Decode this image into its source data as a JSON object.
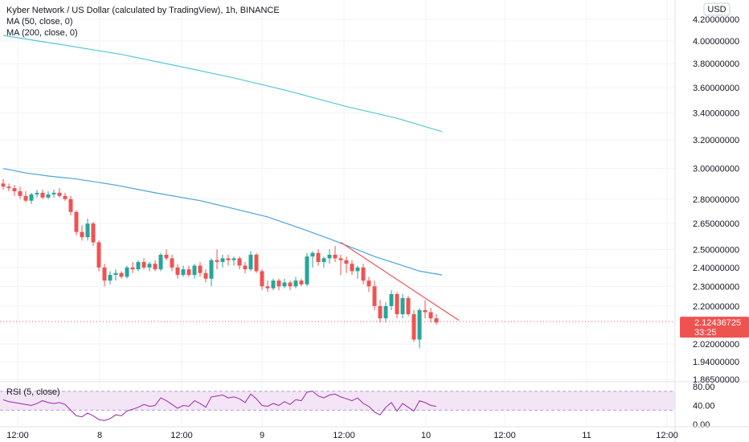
{
  "header": {
    "title": "Kyber Network / US Dollar (calculated by TradingView), 1h, BINANCE",
    "indicators": [
      "MA (50, close, 0)",
      "MA (200, close, 0)"
    ]
  },
  "currency_button": "USD",
  "price_badge": {
    "price": "2.12436725",
    "countdown": "33:25",
    "color": "#ef5350"
  },
  "rsi_label": "RSI (5, close)",
  "colors": {
    "up": "#26a69a",
    "down": "#ef5350",
    "ma50": "#4aa3df",
    "ma200": "#56c8d8",
    "rsi": "#9c27b0",
    "rsi_band": "#f3e5f5",
    "trendline": "#ef5350"
  },
  "chart_data": [
    {
      "type": "candlestick",
      "title": "Kyber Network / US Dollar (calculated by TradingView), 1h, BINANCE",
      "x_ticks": [
        "12:00",
        "8",
        "12:00",
        "9",
        "12:00",
        "10",
        "12:00",
        "11",
        "12:00"
      ],
      "y_ticks": [
        "4.20000000",
        "4.00000000",
        "3.80000000",
        "3.60000000",
        "3.40000000",
        "3.20000000",
        "3.00000000",
        "2.80000000",
        "2.65000000",
        "2.50000000",
        "2.40000000",
        "2.30000000",
        "2.20000000",
        "2.02000000",
        "1.94000000",
        "1.86500000"
      ],
      "y_scale": "log",
      "ylim": [
        1.86,
        4.28
      ],
      "last_price": 2.12436725,
      "candles": [
        [
          2.9,
          2.93,
          2.86,
          2.88
        ],
        [
          2.88,
          2.9,
          2.85,
          2.87
        ],
        [
          2.87,
          2.89,
          2.82,
          2.85
        ],
        [
          2.85,
          2.88,
          2.8,
          2.82
        ],
        [
          2.82,
          2.85,
          2.78,
          2.79
        ],
        [
          2.79,
          2.84,
          2.77,
          2.83
        ],
        [
          2.83,
          2.86,
          2.81,
          2.84
        ],
        [
          2.84,
          2.86,
          2.8,
          2.81
        ],
        [
          2.81,
          2.85,
          2.8,
          2.83
        ],
        [
          2.83,
          2.86,
          2.81,
          2.84
        ],
        [
          2.84,
          2.87,
          2.81,
          2.82
        ],
        [
          2.82,
          2.84,
          2.79,
          2.8
        ],
        [
          2.8,
          2.82,
          2.7,
          2.72
        ],
        [
          2.72,
          2.73,
          2.58,
          2.6
        ],
        [
          2.6,
          2.64,
          2.55,
          2.57
        ],
        [
          2.57,
          2.68,
          2.55,
          2.65
        ],
        [
          2.65,
          2.66,
          2.52,
          2.54
        ],
        [
          2.54,
          2.55,
          2.38,
          2.4
        ],
        [
          2.4,
          2.42,
          2.3,
          2.33
        ],
        [
          2.33,
          2.38,
          2.31,
          2.36
        ],
        [
          2.36,
          2.39,
          2.33,
          2.37
        ],
        [
          2.37,
          2.38,
          2.34,
          2.35
        ],
        [
          2.35,
          2.41,
          2.34,
          2.4
        ],
        [
          2.4,
          2.43,
          2.37,
          2.39
        ],
        [
          2.39,
          2.44,
          2.38,
          2.43
        ],
        [
          2.43,
          2.45,
          2.39,
          2.4
        ],
        [
          2.4,
          2.43,
          2.38,
          2.42
        ],
        [
          2.42,
          2.44,
          2.38,
          2.39
        ],
        [
          2.39,
          2.48,
          2.38,
          2.47
        ],
        [
          2.47,
          2.5,
          2.44,
          2.45
        ],
        [
          2.45,
          2.47,
          2.38,
          2.4
        ],
        [
          2.4,
          2.42,
          2.34,
          2.36
        ],
        [
          2.36,
          2.41,
          2.35,
          2.39
        ],
        [
          2.39,
          2.41,
          2.35,
          2.36
        ],
        [
          2.36,
          2.42,
          2.34,
          2.41
        ],
        [
          2.41,
          2.43,
          2.35,
          2.37
        ],
        [
          2.37,
          2.39,
          2.32,
          2.34
        ],
        [
          2.34,
          2.45,
          2.3,
          2.44
        ],
        [
          2.44,
          2.5,
          2.39,
          2.43
        ],
        [
          2.43,
          2.47,
          2.4,
          2.45
        ],
        [
          2.45,
          2.47,
          2.41,
          2.44
        ],
        [
          2.44,
          2.46,
          2.41,
          2.45
        ],
        [
          2.45,
          2.46,
          2.39,
          2.41
        ],
        [
          2.41,
          2.43,
          2.37,
          2.39
        ],
        [
          2.39,
          2.49,
          2.38,
          2.47
        ],
        [
          2.47,
          2.48,
          2.37,
          2.38
        ],
        [
          2.38,
          2.39,
          2.28,
          2.3
        ],
        [
          2.3,
          2.33,
          2.27,
          2.29
        ],
        [
          2.29,
          2.34,
          2.28,
          2.33
        ],
        [
          2.33,
          2.34,
          2.28,
          2.3
        ],
        [
          2.3,
          2.34,
          2.29,
          2.32
        ],
        [
          2.32,
          2.33,
          2.28,
          2.3
        ],
        [
          2.3,
          2.35,
          2.29,
          2.33
        ],
        [
          2.33,
          2.34,
          2.3,
          2.31
        ],
        [
          2.31,
          2.48,
          2.3,
          2.46
        ],
        [
          2.46,
          2.49,
          2.4,
          2.48
        ],
        [
          2.48,
          2.5,
          2.41,
          2.43
        ],
        [
          2.43,
          2.46,
          2.4,
          2.45
        ],
        [
          2.45,
          2.5,
          2.42,
          2.47
        ],
        [
          2.47,
          2.52,
          2.43,
          2.45
        ],
        [
          2.45,
          2.47,
          2.36,
          2.44
        ],
        [
          2.44,
          2.46,
          2.37,
          2.42
        ],
        [
          2.42,
          2.44,
          2.36,
          2.38
        ],
        [
          2.38,
          2.41,
          2.34,
          2.4
        ],
        [
          2.4,
          2.42,
          2.31,
          2.33
        ],
        [
          2.33,
          2.35,
          2.27,
          2.3
        ],
        [
          2.3,
          2.33,
          2.18,
          2.2
        ],
        [
          2.2,
          2.23,
          2.12,
          2.14
        ],
        [
          2.14,
          2.22,
          2.12,
          2.2
        ],
        [
          2.2,
          2.28,
          2.18,
          2.26
        ],
        [
          2.26,
          2.27,
          2.14,
          2.16
        ],
        [
          2.16,
          2.26,
          2.14,
          2.24
        ],
        [
          2.24,
          2.25,
          2.15,
          2.16
        ],
        [
          2.16,
          2.18,
          2.03,
          2.04
        ],
        [
          2.04,
          2.19,
          2.0,
          2.18
        ],
        [
          2.18,
          2.23,
          2.14,
          2.17
        ],
        [
          2.17,
          2.19,
          2.12,
          2.14
        ],
        [
          2.14,
          2.16,
          2.11,
          2.12
        ]
      ],
      "series": [
        {
          "name": "MA (50, close, 0)",
          "points": [
            [
              0,
              3.0
            ],
            [
              4,
              2.97
            ],
            [
              8,
              2.95
            ],
            [
              13,
              2.93
            ],
            [
              20,
              2.89
            ],
            [
              27,
              2.84
            ],
            [
              35,
              2.79
            ],
            [
              41,
              2.74
            ],
            [
              47,
              2.69
            ],
            [
              53,
              2.62
            ],
            [
              58,
              2.56
            ],
            [
              62,
              2.51
            ],
            [
              66,
              2.46
            ],
            [
              70,
              2.42
            ],
            [
              74,
              2.38
            ],
            [
              78,
              2.36
            ]
          ]
        },
        {
          "name": "MA (200, close, 0)",
          "points": [
            [
              0,
              4.05
            ],
            [
              10,
              3.97
            ],
            [
              21,
              3.88
            ],
            [
              31,
              3.78
            ],
            [
              41,
              3.68
            ],
            [
              51,
              3.57
            ],
            [
              61,
              3.45
            ],
            [
              70,
              3.36
            ],
            [
              78,
              3.26
            ]
          ]
        }
      ],
      "trendline": [
        [
          60,
          2.54
        ],
        [
          81,
          2.13
        ]
      ]
    },
    {
      "type": "line",
      "title": "RSI (5, close)",
      "y_ticks": [
        "80.00",
        "40.00",
        "0.00"
      ],
      "ylim": [
        0,
        85
      ],
      "bands": [
        30,
        70
      ],
      "series": [
        {
          "name": "RSI (5, close)",
          "values": [
            52,
            48,
            46,
            44,
            42,
            40,
            44,
            50,
            46,
            44,
            46,
            42,
            30,
            18,
            16,
            24,
            18,
            10,
            8,
            12,
            20,
            18,
            28,
            32,
            36,
            42,
            38,
            40,
            56,
            50,
            42,
            34,
            40,
            38,
            50,
            44,
            36,
            58,
            60,
            62,
            56,
            58,
            54,
            46,
            64,
            54,
            40,
            38,
            44,
            40,
            48,
            42,
            52,
            50,
            68,
            70,
            60,
            56,
            62,
            64,
            58,
            54,
            50,
            56,
            44,
            38,
            26,
            20,
            36,
            46,
            28,
            44,
            36,
            28,
            50,
            46,
            40,
            38
          ]
        }
      ]
    }
  ]
}
